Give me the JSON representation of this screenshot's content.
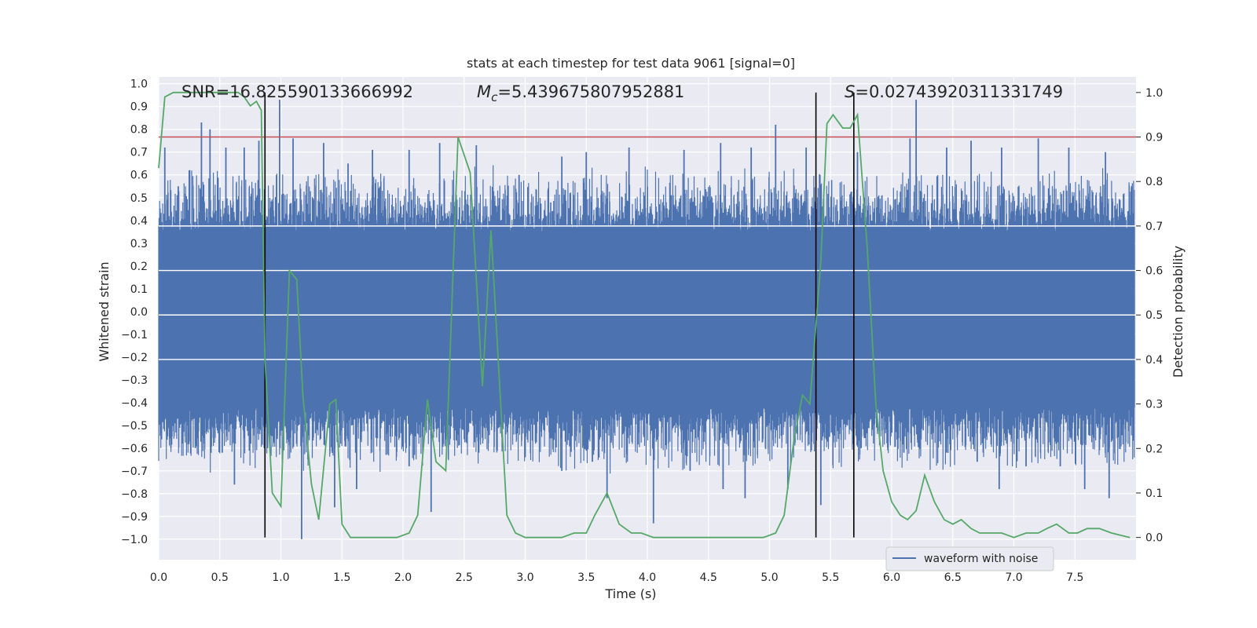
{
  "chart_data": {
    "type": "line",
    "title": "stats at each timestep for test data 9061 [signal=0]",
    "xlabel": "Time (s)",
    "ylabel": "Whitened strain",
    "y2label": "Detection probability",
    "xlim": [
      0.0,
      8.0
    ],
    "ylim": [
      -1.09,
      1.03
    ],
    "y2lim": [
      -0.05,
      1.035
    ],
    "xticks": [
      "0.0",
      "0.5",
      "1.0",
      "1.5",
      "2.0",
      "2.5",
      "3.0",
      "3.5",
      "4.0",
      "4.5",
      "5.0",
      "5.5",
      "6.0",
      "6.5",
      "7.0",
      "7.5"
    ],
    "xtick_values": [
      0.0,
      0.5,
      1.0,
      1.5,
      2.0,
      2.5,
      3.0,
      3.5,
      4.0,
      4.5,
      5.0,
      5.5,
      6.0,
      6.5,
      7.0,
      7.5
    ],
    "yticks": [
      "1.0",
      "0.9",
      "0.8",
      "0.7",
      "0.6",
      "0.5",
      "0.4",
      "0.3",
      "0.2",
      "0.1",
      "0.0",
      "−0.1",
      "−0.2",
      "−0.3",
      "−0.4",
      "−0.5",
      "−0.6",
      "−0.7",
      "−0.8",
      "−0.9",
      "−1.0"
    ],
    "ytick_values": [
      1.0,
      0.9,
      0.8,
      0.7,
      0.6,
      0.5,
      0.4,
      0.3,
      0.2,
      0.1,
      0.0,
      -0.1,
      -0.2,
      -0.3,
      -0.4,
      -0.5,
      -0.6,
      -0.7,
      -0.8,
      -0.9,
      -1.0
    ],
    "y2ticks": [
      "0.0",
      "0.1",
      "0.2",
      "0.3",
      "0.4",
      "0.5",
      "0.6",
      "0.7",
      "0.8",
      "0.9",
      "1.0"
    ],
    "y2tick_values": [
      0.0,
      0.1,
      0.2,
      0.3,
      0.4,
      0.5,
      0.6,
      0.7,
      0.8,
      0.9,
      1.0
    ],
    "y2_gridlines": [
      0.4,
      0.5,
      0.6,
      0.7
    ],
    "annotations": {
      "snr": "SNR=16.825590133666992",
      "mc_symbol": "M",
      "mc_sub": "c",
      "mc_value": "=5.439675807952881",
      "s_symbol": "S",
      "s_value": "=0.02743920311331749"
    },
    "threshold_line": {
      "value": 0.9,
      "axis": "y2",
      "color": "#c44e52"
    },
    "vertical_lines": [
      {
        "x": 0.87,
        "y2_top": 1.0,
        "y2_bottom": 0.0
      },
      {
        "x": 5.38,
        "y2_top": 1.0,
        "y2_bottom": 0.0
      },
      {
        "x": 5.69,
        "y2_top": 1.0,
        "y2_bottom": 0.0
      }
    ],
    "series": [
      {
        "name": "waveform with noise",
        "axis": "y1",
        "color": "#4c72b0",
        "style": "dense-noise",
        "band_low": -0.42,
        "band_high": 0.35,
        "amplitude_range": [
          -1.0,
          0.93
        ],
        "spikes": [
          {
            "x": 0.05,
            "y": 0.72
          },
          {
            "x": 0.16,
            "y": 0.55
          },
          {
            "x": 0.25,
            "y": 0.62
          },
          {
            "x": 0.35,
            "y": 0.83
          },
          {
            "x": 0.42,
            "y": 0.8
          },
          {
            "x": 0.55,
            "y": 0.72
          },
          {
            "x": 0.7,
            "y": 0.72
          },
          {
            "x": 0.82,
            "y": 0.75
          },
          {
            "x": 0.99,
            "y": 0.93
          },
          {
            "x": 1.1,
            "y": 0.76
          },
          {
            "x": 1.35,
            "y": 0.74
          },
          {
            "x": 1.55,
            "y": 0.65
          },
          {
            "x": 1.75,
            "y": 0.71
          },
          {
            "x": 2.05,
            "y": 0.71
          },
          {
            "x": 2.3,
            "y": 0.74
          },
          {
            "x": 2.6,
            "y": 0.73
          },
          {
            "x": 2.95,
            "y": 0.6
          },
          {
            "x": 3.3,
            "y": 0.68
          },
          {
            "x": 3.5,
            "y": 0.7
          },
          {
            "x": 3.85,
            "y": 0.72
          },
          {
            "x": 4.3,
            "y": 0.71
          },
          {
            "x": 4.6,
            "y": 0.74
          },
          {
            "x": 4.85,
            "y": 0.72
          },
          {
            "x": 5.05,
            "y": 0.82
          },
          {
            "x": 5.3,
            "y": 0.72
          },
          {
            "x": 5.72,
            "y": 0.7
          },
          {
            "x": 6.15,
            "y": 0.76
          },
          {
            "x": 6.2,
            "y": 0.93
          },
          {
            "x": 6.45,
            "y": 0.72
          },
          {
            "x": 6.65,
            "y": 0.75
          },
          {
            "x": 6.9,
            "y": 0.72
          },
          {
            "x": 7.2,
            "y": 0.76
          },
          {
            "x": 7.45,
            "y": 0.72
          },
          {
            "x": 7.75,
            "y": 0.7
          },
          {
            "x": 0.1,
            "y": -0.6
          },
          {
            "x": 0.3,
            "y": -0.6
          },
          {
            "x": 0.52,
            "y": -0.62
          },
          {
            "x": 0.62,
            "y": -0.76
          },
          {
            "x": 0.97,
            "y": -0.56
          },
          {
            "x": 1.17,
            "y": -1.0
          },
          {
            "x": 1.44,
            "y": -0.86
          },
          {
            "x": 1.62,
            "y": -0.78
          },
          {
            "x": 2.05,
            "y": -0.68
          },
          {
            "x": 2.23,
            "y": -0.88
          },
          {
            "x": 2.62,
            "y": -0.62
          },
          {
            "x": 3.0,
            "y": -0.64
          },
          {
            "x": 3.3,
            "y": -0.7
          },
          {
            "x": 3.55,
            "y": -0.66
          },
          {
            "x": 3.67,
            "y": -0.82
          },
          {
            "x": 4.05,
            "y": -0.93
          },
          {
            "x": 4.35,
            "y": -0.7
          },
          {
            "x": 4.62,
            "y": -0.78
          },
          {
            "x": 4.8,
            "y": -0.82
          },
          {
            "x": 5.15,
            "y": -0.78
          },
          {
            "x": 5.42,
            "y": -0.85
          },
          {
            "x": 5.75,
            "y": -0.6
          },
          {
            "x": 6.1,
            "y": -0.62
          },
          {
            "x": 6.45,
            "y": -0.62
          },
          {
            "x": 6.7,
            "y": -0.66
          },
          {
            "x": 6.88,
            "y": -0.78
          },
          {
            "x": 7.1,
            "y": -0.68
          },
          {
            "x": 7.38,
            "y": -0.68
          },
          {
            "x": 7.58,
            "y": -0.78
          },
          {
            "x": 7.78,
            "y": -0.82
          }
        ]
      },
      {
        "name": "detection probability",
        "axis": "y2",
        "color": "#55a868",
        "x": [
          0.0,
          0.05,
          0.12,
          0.2,
          0.3,
          0.4,
          0.5,
          0.6,
          0.65,
          0.7,
          0.75,
          0.8,
          0.84,
          0.87,
          0.93,
          1.0,
          1.07,
          1.13,
          1.18,
          1.25,
          1.31,
          1.4,
          1.45,
          1.5,
          1.57,
          1.65,
          1.8,
          1.95,
          2.05,
          2.12,
          2.2,
          2.27,
          2.35,
          2.45,
          2.55,
          2.65,
          2.72,
          2.85,
          2.92,
          3.0,
          3.1,
          3.2,
          3.3,
          3.4,
          3.5,
          3.57,
          3.67,
          3.77,
          3.87,
          3.95,
          4.05,
          4.2,
          4.35,
          4.5,
          4.65,
          4.8,
          4.95,
          5.05,
          5.12,
          5.2,
          5.27,
          5.33,
          5.42,
          5.47,
          5.52,
          5.6,
          5.66,
          5.72,
          5.8,
          5.87,
          5.93,
          6.0,
          6.07,
          6.13,
          6.2,
          6.27,
          6.35,
          6.43,
          6.5,
          6.57,
          6.65,
          6.72,
          6.82,
          6.9,
          7.0,
          7.1,
          7.2,
          7.27,
          7.35,
          7.45,
          7.52,
          7.6,
          7.7,
          7.8,
          7.95
        ],
        "y": [
          0.83,
          0.99,
          1.0,
          1.0,
          1.0,
          1.0,
          1.0,
          1.0,
          1.0,
          0.99,
          0.97,
          0.98,
          0.96,
          0.4,
          0.1,
          0.07,
          0.6,
          0.58,
          0.32,
          0.12,
          0.04,
          0.3,
          0.31,
          0.03,
          0.0,
          0.0,
          0.0,
          0.0,
          0.01,
          0.05,
          0.31,
          0.17,
          0.15,
          0.9,
          0.82,
          0.34,
          0.69,
          0.05,
          0.01,
          0.0,
          0.0,
          0.0,
          0.0,
          0.01,
          0.01,
          0.05,
          0.1,
          0.03,
          0.01,
          0.01,
          0.0,
          0.0,
          0.0,
          0.0,
          0.0,
          0.0,
          0.0,
          0.01,
          0.05,
          0.22,
          0.32,
          0.3,
          0.62,
          0.93,
          0.95,
          0.92,
          0.92,
          0.95,
          0.65,
          0.3,
          0.15,
          0.08,
          0.05,
          0.04,
          0.06,
          0.14,
          0.08,
          0.04,
          0.03,
          0.04,
          0.02,
          0.01,
          0.01,
          0.01,
          0.0,
          0.01,
          0.01,
          0.02,
          0.03,
          0.01,
          0.01,
          0.02,
          0.02,
          0.01,
          0.0
        ]
      }
    ],
    "legend": {
      "label": "waveform with noise",
      "placement": "lower-right"
    }
  }
}
